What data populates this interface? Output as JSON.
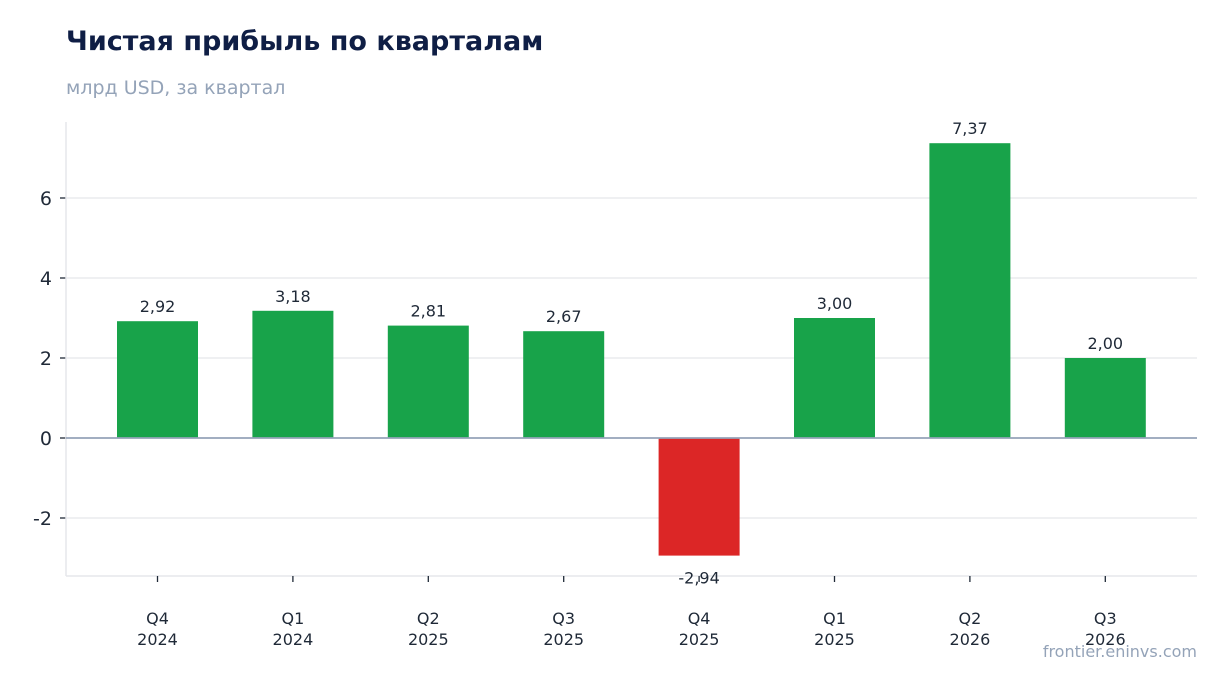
{
  "header": {
    "title": "Чистая прибыль по кварталам",
    "subtitle": "млрд USD, за квартал"
  },
  "footer": {
    "source": "frontier.eninvs.com"
  },
  "colors": {
    "positive": "#18a34a",
    "negative": "#dc2626",
    "grid": "#e5e7eb",
    "zero_line": "#94a3b8"
  },
  "chart_data": {
    "type": "bar",
    "title": "Чистая прибыль по кварталам",
    "subtitle": "млрд USD, за квартал",
    "categories": [
      [
        "Q4",
        "2024"
      ],
      [
        "Q1",
        "2024"
      ],
      [
        "Q2",
        "2025"
      ],
      [
        "Q3",
        "2025"
      ],
      [
        "Q4",
        "2025"
      ],
      [
        "Q1",
        "2025"
      ],
      [
        "Q2",
        "2026"
      ],
      [
        "Q3",
        "2026"
      ]
    ],
    "values": [
      2.92,
      3.18,
      2.81,
      2.67,
      -2.94,
      3.0,
      7.37,
      2.0
    ],
    "value_labels": [
      "2,92",
      "3,18",
      "2,81",
      "2,67",
      "-2,94",
      "3,00",
      "7,37",
      "2,00"
    ],
    "yticks": [
      -2,
      0,
      2,
      4,
      6
    ],
    "ytick_labels": [
      "-2",
      "0",
      "2",
      "4",
      "6"
    ],
    "ylim": [
      -3.45,
      7.9
    ],
    "grid": true,
    "xlabel": "",
    "ylabel": ""
  }
}
